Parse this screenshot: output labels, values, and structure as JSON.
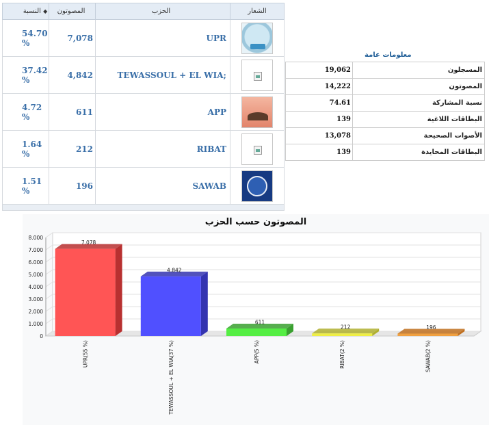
{
  "results": {
    "headers": {
      "pct": "النسبة",
      "votes": "المصوتون",
      "party": "الحزب",
      "logo": "الشعار"
    },
    "rows": [
      {
        "pct": "54.70 %",
        "votes": "7,078",
        "party": "UPR",
        "logo_icon": "upr-logo"
      },
      {
        "pct": "37.42 %",
        "votes": "4,842",
        "party": "TEWASSOUL + EL WIA;",
        "logo_icon": "broken-image-icon"
      },
      {
        "pct": "4.72 %",
        "votes": "611",
        "party": "APP",
        "logo_icon": "app-logo"
      },
      {
        "pct": "1.64 %",
        "votes": "212",
        "party": "RIBAT",
        "logo_icon": "broken-image-icon"
      },
      {
        "pct": "1.51 %",
        "votes": "196",
        "party": "SAWAB",
        "logo_icon": "sawab-logo"
      }
    ]
  },
  "general": {
    "title": "معلومات عامة",
    "rows": [
      {
        "label": "المسجلون",
        "value": "19,062"
      },
      {
        "label": "المصوتون",
        "value": "14,222"
      },
      {
        "label": "نسبة المشاركة",
        "value": "74.61"
      },
      {
        "label": "البطاقات اللاغية",
        "value": "139"
      },
      {
        "label": "الأصوات الصحيحة",
        "value": "13,078"
      },
      {
        "label": "البطاقات المحايدة",
        "value": "139"
      }
    ]
  },
  "chart_data": {
    "type": "bar",
    "title": "المصوتون حسب الحزب",
    "categories": [
      "UPR(55 %)",
      "TEWASSOUL + EL WIA(37 %)",
      "APP(5 %)",
      "RIBAT(2 %)",
      "SAWAB(2 %)"
    ],
    "values": [
      7078,
      4842,
      611,
      212,
      196
    ],
    "value_labels": [
      "7.078",
      "4.842",
      "611",
      "212",
      "196"
    ],
    "yticks": [
      "0",
      "1.000",
      "2.000",
      "3.000",
      "4.000",
      "5.000",
      "6.000",
      "7.000",
      "8.000"
    ],
    "ylim": [
      0,
      8000
    ],
    "grid": true,
    "colors": [
      "#ff5555",
      "#5050ff",
      "#55ee44",
      "#eeee44",
      "#f0a040"
    ],
    "side_colors": [
      "#b83030",
      "#3434b0",
      "#3aa030",
      "#b0b030",
      "#c07020"
    ]
  }
}
